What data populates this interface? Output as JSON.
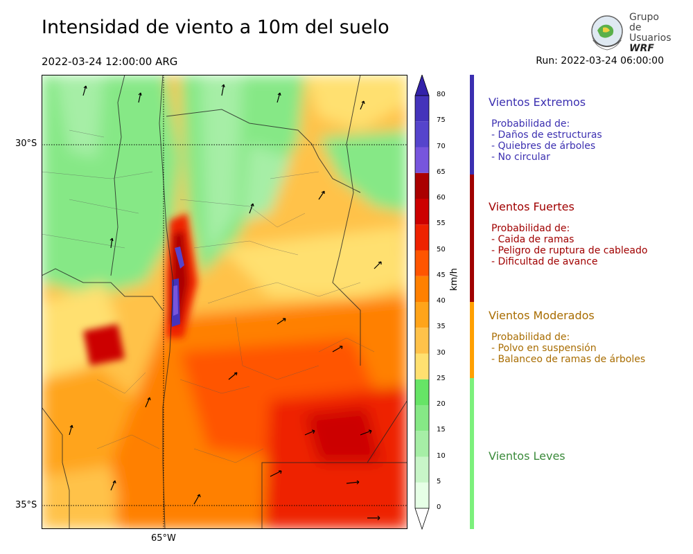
{
  "header": {
    "title": "Intensidad de viento a 10m del suelo",
    "valid_time": "2022-03-24 12:00:00 ARG",
    "run": "Run: 2022-03-24 06:00:00"
  },
  "logo": {
    "line1": "Grupo de",
    "line2": "Usuarios",
    "line3": "WRF"
  },
  "axes": {
    "lat_labels": [
      "30°S",
      "35°S"
    ],
    "lon_labels": [
      "65°W"
    ]
  },
  "colorbar": {
    "unit": "km/h",
    "ticks": [
      "0",
      "5",
      "10",
      "15",
      "20",
      "25",
      "30",
      "35",
      "40",
      "45",
      "50",
      "55",
      "60",
      "65",
      "70",
      "75",
      "80"
    ],
    "colors": [
      "#e6ffe6",
      "#c8f5c8",
      "#a6eea6",
      "#86e886",
      "#66e466",
      "#ffe070",
      "#ffc24a",
      "#ffa41a",
      "#ff8000",
      "#ff5500",
      "#ee2200",
      "#cc0000",
      "#aa0000",
      "#7755dd",
      "#5544cc",
      "#4433bb",
      "#3322aa"
    ],
    "range": [
      0,
      80
    ]
  },
  "categories": [
    {
      "name": "Vientos Extremos",
      "color": "#3b2fb0",
      "lines": [
        "Probabilidad de:",
        "- Daños de estructuras",
        "- Quiebres de árboles",
        "- No circular"
      ]
    },
    {
      "name": "Vientos Fuertes",
      "color": "#a00000",
      "lines": [
        "Probabilidad de:",
        "- Caida de ramas",
        "- Peligro de ruptura de cableado",
        "- Dificultad de avance"
      ]
    },
    {
      "name": "Vientos Moderados",
      "color": "#a86c00",
      "lines": [
        "Probabilidad de:",
        "- Polvo en suspensión",
        "- Balanceo de ramas de árboles"
      ]
    },
    {
      "name": "Vientos Leves",
      "color": "#3a8a3a",
      "lines": []
    }
  ],
  "colors": {
    "bar_extreme": "#3b2fb0",
    "bar_strong": "#a00000",
    "bar_moderate": "#ffa000",
    "bar_light": "#7cf07c"
  }
}
